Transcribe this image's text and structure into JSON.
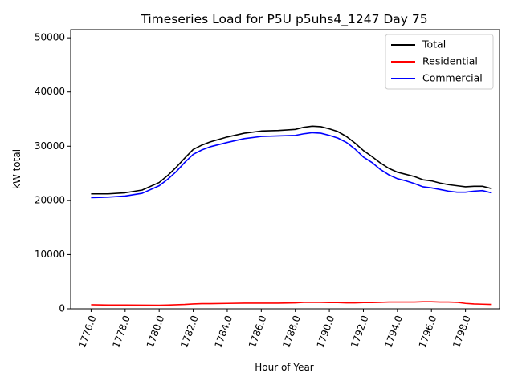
{
  "chart_data": {
    "type": "line",
    "title": "Timeseries Load for P5U p5uhs4_1247  Day 75",
    "xlabel": "Hour of Year",
    "ylabel": "kW total",
    "xlim": [
      1774.8,
      1800.0
    ],
    "ylim": [
      0,
      51500
    ],
    "xticks": [
      1776,
      1778,
      1780,
      1782,
      1784,
      1786,
      1788,
      1790,
      1792,
      1794,
      1796,
      1798
    ],
    "xtick_labels": [
      "1776.0",
      "1778.0",
      "1780.0",
      "1782.0",
      "1784.0",
      "1786.0",
      "1788.0",
      "1790.0",
      "1792.0",
      "1794.0",
      "1796.0",
      "1798.0"
    ],
    "yticks": [
      0,
      10000,
      20000,
      30000,
      40000,
      50000
    ],
    "ytick_labels": [
      "0",
      "10000",
      "20000",
      "30000",
      "40000",
      "50000"
    ],
    "legend_position": "top-right",
    "x": [
      1776.0,
      1777.0,
      1778.0,
      1779.0,
      1780.0,
      1780.5,
      1781.0,
      1781.5,
      1782.0,
      1782.5,
      1783.0,
      1784.0,
      1785.0,
      1786.0,
      1787.0,
      1788.0,
      1788.5,
      1789.0,
      1789.5,
      1790.0,
      1790.5,
      1791.0,
      1791.5,
      1792.0,
      1792.5,
      1793.0,
      1793.5,
      1794.0,
      1794.5,
      1795.0,
      1795.5,
      1796.0,
      1796.5,
      1797.0,
      1797.5,
      1798.0,
      1798.5,
      1799.0,
      1799.5
    ],
    "series": [
      {
        "name": "Total",
        "color": "#000000",
        "values": [
          21200,
          21200,
          21400,
          21900,
          23300,
          24600,
          26100,
          27800,
          29400,
          30200,
          30800,
          31700,
          32400,
          32800,
          32900,
          33100,
          33500,
          33700,
          33600,
          33200,
          32700,
          31800,
          30600,
          29200,
          28100,
          26900,
          25900,
          25200,
          24800,
          24400,
          23800,
          23600,
          23200,
          22900,
          22700,
          22500,
          22600,
          22600,
          22200
        ]
      },
      {
        "name": "Residential",
        "color": "#ff0000",
        "values": [
          750,
          700,
          700,
          680,
          650,
          700,
          750,
          800,
          900,
          950,
          950,
          1000,
          1050,
          1050,
          1050,
          1100,
          1200,
          1200,
          1200,
          1150,
          1150,
          1100,
          1100,
          1150,
          1150,
          1200,
          1250,
          1250,
          1250,
          1250,
          1300,
          1300,
          1250,
          1250,
          1200,
          1000,
          900,
          850,
          800
        ]
      },
      {
        "name": "Commercial",
        "color": "#0000ff",
        "values": [
          20500,
          20600,
          20800,
          21300,
          22700,
          23900,
          25300,
          27000,
          28500,
          29300,
          29900,
          30700,
          31400,
          31800,
          31900,
          32000,
          32300,
          32500,
          32400,
          32000,
          31500,
          30700,
          29500,
          28000,
          27000,
          25700,
          24700,
          24000,
          23600,
          23100,
          22500,
          22300,
          22000,
          21700,
          21500,
          21500,
          21700,
          21800,
          21400
        ]
      }
    ]
  }
}
